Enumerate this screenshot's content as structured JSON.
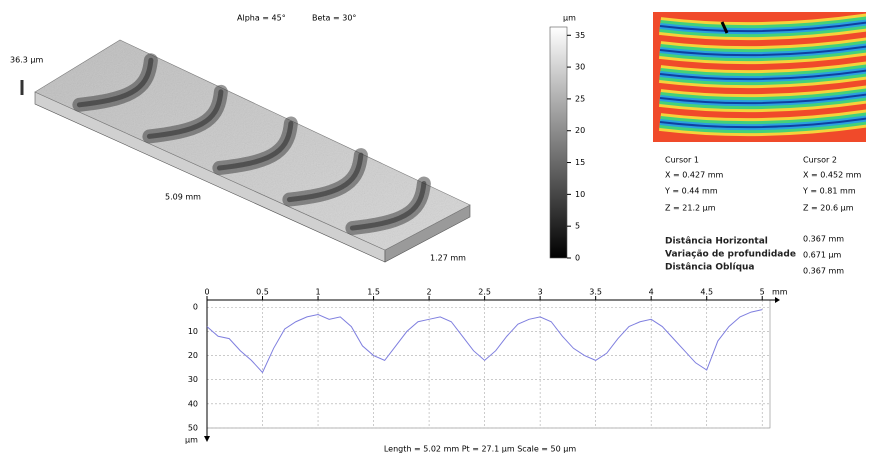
{
  "view3d": {
    "alpha": "Alpha = 45°",
    "beta": "Beta = 30°",
    "height": "36.3 µm",
    "length": "5.09 mm",
    "width": "1.27 mm"
  },
  "colorbar": {
    "unit": "µm",
    "ylim": [
      0,
      36.3
    ],
    "yticks": [
      0,
      5,
      10,
      15,
      20,
      25,
      30,
      35
    ]
  },
  "cursors": [
    {
      "title": "Cursor 1",
      "x": "X = 0.427 mm",
      "y": "Y = 0.44 mm",
      "z": "Z = 21.2 µm"
    },
    {
      "title": "Cursor 2",
      "x": "X = 0.452 mm",
      "y": "Y = 0.81 mm",
      "z": "Z = 20.6 µm"
    }
  ],
  "measures": [
    {
      "label": "Distância Horizontal",
      "value": "0.367 mm"
    },
    {
      "label": "Variação de profundidade",
      "value": "0.671 µm"
    },
    {
      "label": "Distância Oblíqua",
      "value": "0.367 mm"
    }
  ],
  "chart_data": {
    "type": "line",
    "x_unit": "mm",
    "y_unit": "µm",
    "caption": "Length = 5.02 mm  Pt = 27.1 µm  Scale = 50 µm",
    "xlim": [
      0,
      5.07
    ],
    "ylim": [
      -3,
      50
    ],
    "y_inverted": true,
    "grid": true,
    "xticks": [
      0,
      0.5,
      1,
      1.5,
      2,
      2.5,
      3,
      3.5,
      4,
      4.5,
      5
    ],
    "yticks": [
      0,
      10,
      20,
      30,
      40,
      50
    ],
    "x": [
      0,
      0.1,
      0.2,
      0.3,
      0.4,
      0.5,
      0.6,
      0.7,
      0.8,
      0.9,
      1,
      1.1,
      1.2,
      1.3,
      1.4,
      1.5,
      1.6,
      1.7,
      1.8,
      1.9,
      2,
      2.1,
      2.2,
      2.3,
      2.4,
      2.5,
      2.6,
      2.7,
      2.8,
      2.9,
      3,
      3.1,
      3.2,
      3.3,
      3.4,
      3.5,
      3.6,
      3.7,
      3.8,
      3.9,
      4,
      4.1,
      4.2,
      4.3,
      4.4,
      4.5,
      4.6,
      4.7,
      4.8,
      4.9,
      5
    ],
    "series": [
      {
        "color": "#7f7fdf",
        "values": [
          8,
          12,
          13,
          18,
          22,
          27,
          17,
          9,
          6,
          4,
          3,
          5,
          4,
          8,
          16,
          20,
          22,
          16,
          10,
          6,
          5,
          4,
          6,
          12,
          18,
          22,
          18,
          12,
          7,
          5,
          4,
          6,
          12,
          17,
          20,
          22,
          19,
          13,
          8,
          6,
          5,
          8,
          13,
          18,
          23,
          26,
          14,
          8,
          4,
          2,
          1
        ]
      }
    ]
  }
}
